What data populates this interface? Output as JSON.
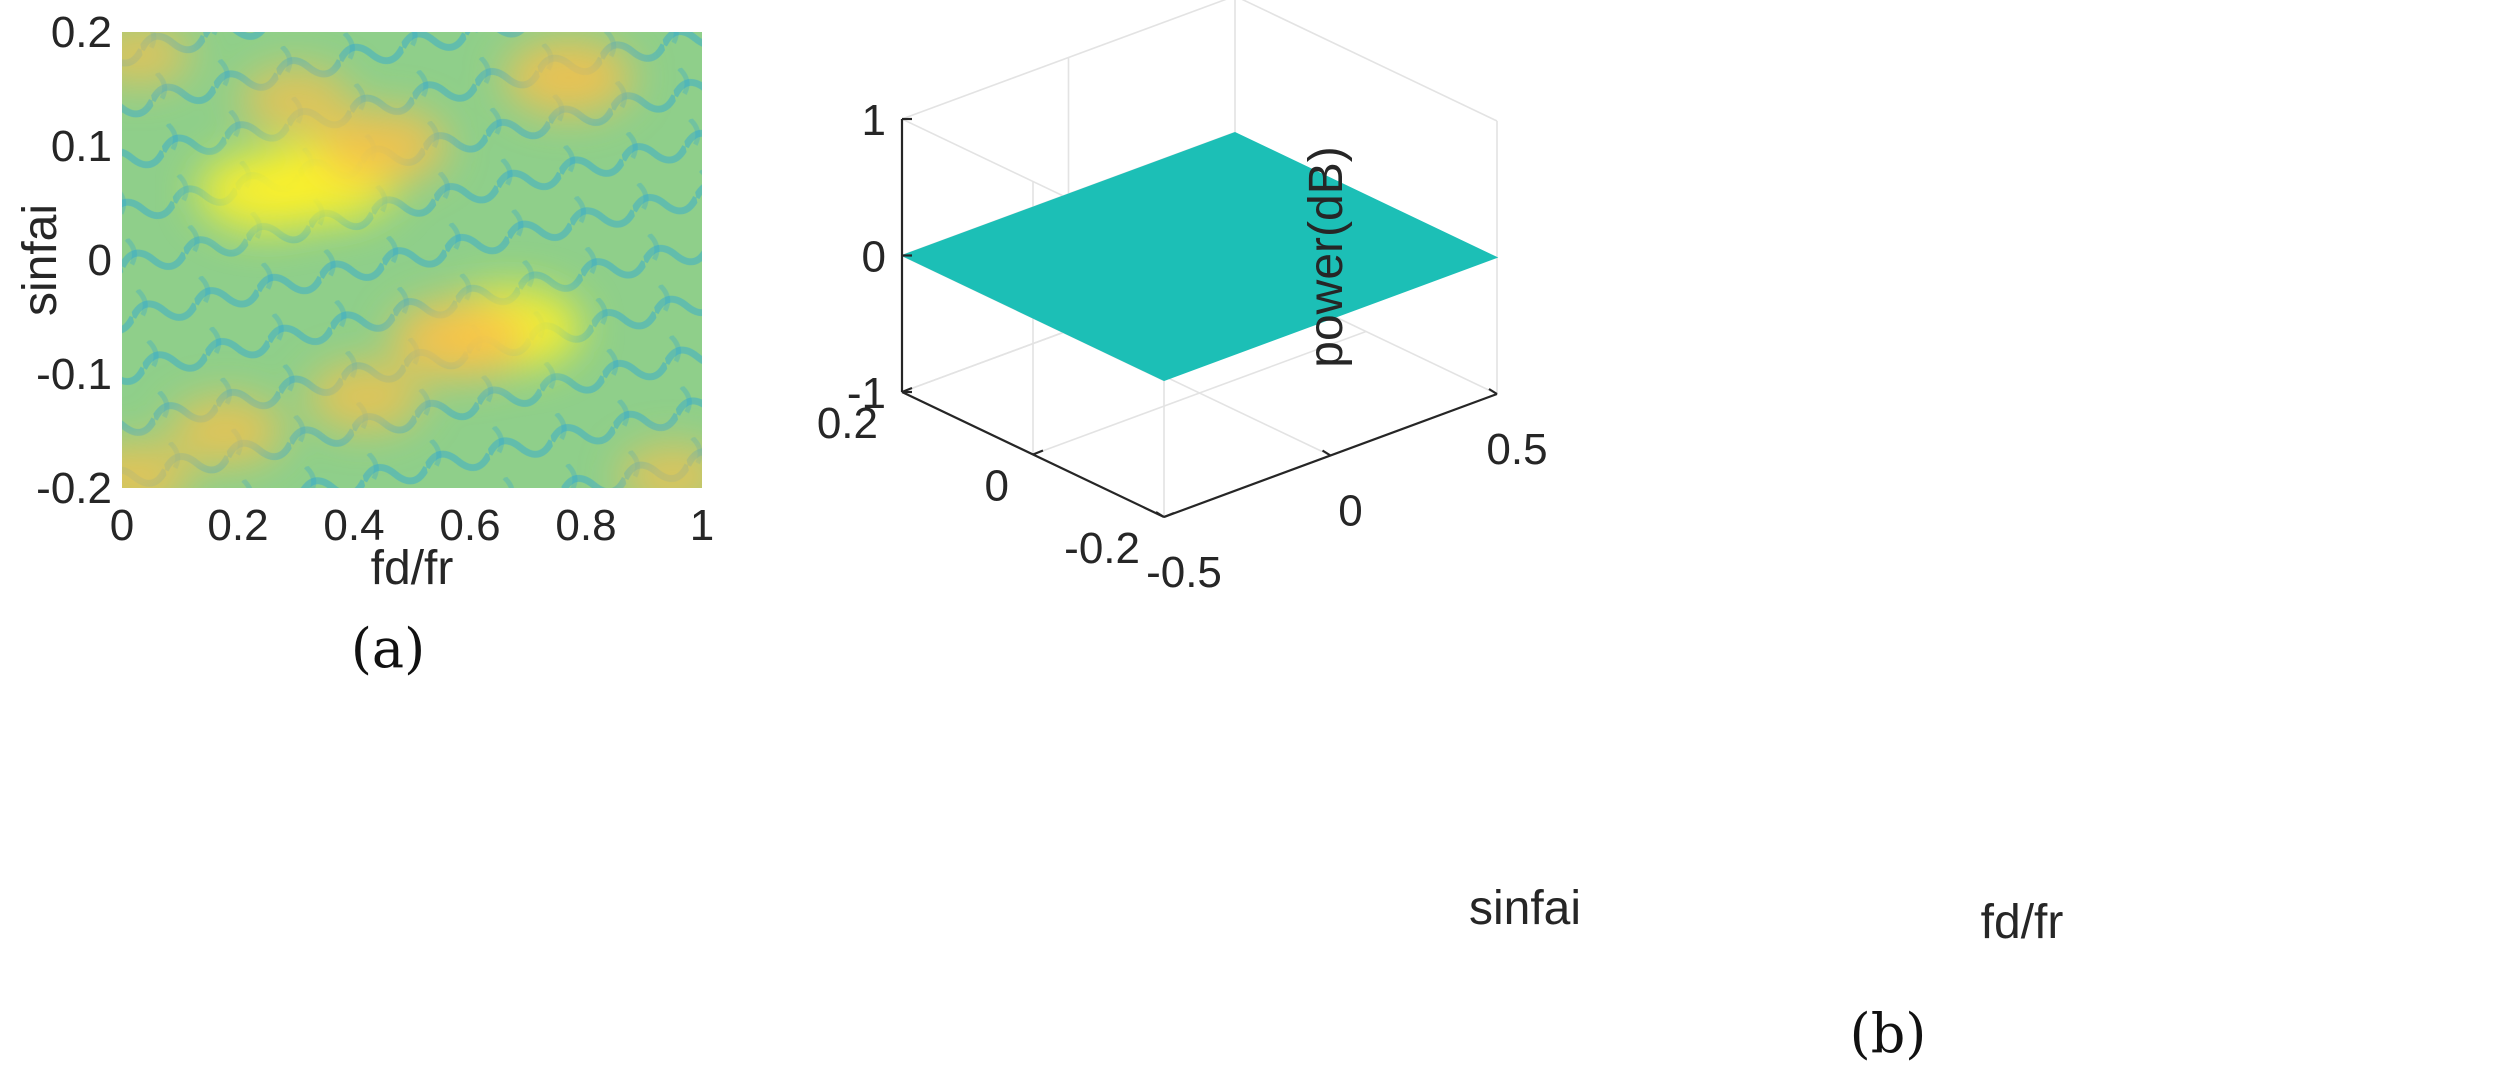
{
  "chart_data": [
    {
      "type": "heatmap",
      "panel_label": "(a)",
      "xlabel": "fd/fr",
      "ylabel": "sinfai",
      "xlim": [
        0,
        1
      ],
      "ylim": [
        -0.2,
        0.2
      ],
      "x_ticks": [
        0,
        0.2,
        0.4,
        0.6,
        0.8,
        1
      ],
      "x_tick_labels": [
        "0",
        "0.2",
        "0.4",
        "0.6",
        "0.8",
        "1"
      ],
      "y_ticks": [
        -0.2,
        -0.1,
        0,
        0.1,
        0.2
      ],
      "y_tick_labels": [
        "-0.2",
        "-0.1",
        "0",
        "0.1",
        "0.2"
      ],
      "colors": {
        "low": "#2aa6d6",
        "mid": "#8fcf8a",
        "high": "#f8c04a",
        "peak": "#f9f02c"
      },
      "hotspots": [
        {
          "x": 0.35,
          "y": 0.07,
          "intensity": 1.0
        },
        {
          "x": 0.25,
          "y": 0.06,
          "intensity": 0.9
        },
        {
          "x": 0.45,
          "y": 0.1,
          "intensity": 0.75
        },
        {
          "x": 0.67,
          "y": -0.06,
          "intensity": 0.95
        },
        {
          "x": 0.58,
          "y": -0.07,
          "intensity": 0.85
        },
        {
          "x": 0.77,
          "y": 0.16,
          "intensity": 0.75
        },
        {
          "x": 0.3,
          "y": 0.14,
          "intensity": 0.5
        },
        {
          "x": 0.42,
          "y": -0.12,
          "intensity": 0.55
        },
        {
          "x": 0.18,
          "y": -0.15,
          "intensity": 0.55
        },
        {
          "x": 0.02,
          "y": -0.19,
          "intensity": 0.55
        },
        {
          "x": 0.03,
          "y": 0.18,
          "intensity": 0.4
        },
        {
          "x": 0.95,
          "y": -0.19,
          "intensity": 0.45
        }
      ]
    },
    {
      "type": "surface",
      "panel_label": "(b)",
      "xlabel": "fd/fr",
      "ylabel": "sinfai",
      "zlabel": "power(dB)",
      "xlim": [
        -0.5,
        0.5
      ],
      "ylim": [
        -0.2,
        0.2
      ],
      "zlim": [
        -1,
        1
      ],
      "x_tick_labels": [
        "-0.5",
        "0",
        "0.5"
      ],
      "y_tick_labels": [
        "-0.2",
        "0",
        "0.2"
      ],
      "z_tick_labels": [
        "-1",
        "0",
        "1"
      ],
      "surface_value": 0,
      "surface_color": "#1cbfb6"
    }
  ]
}
